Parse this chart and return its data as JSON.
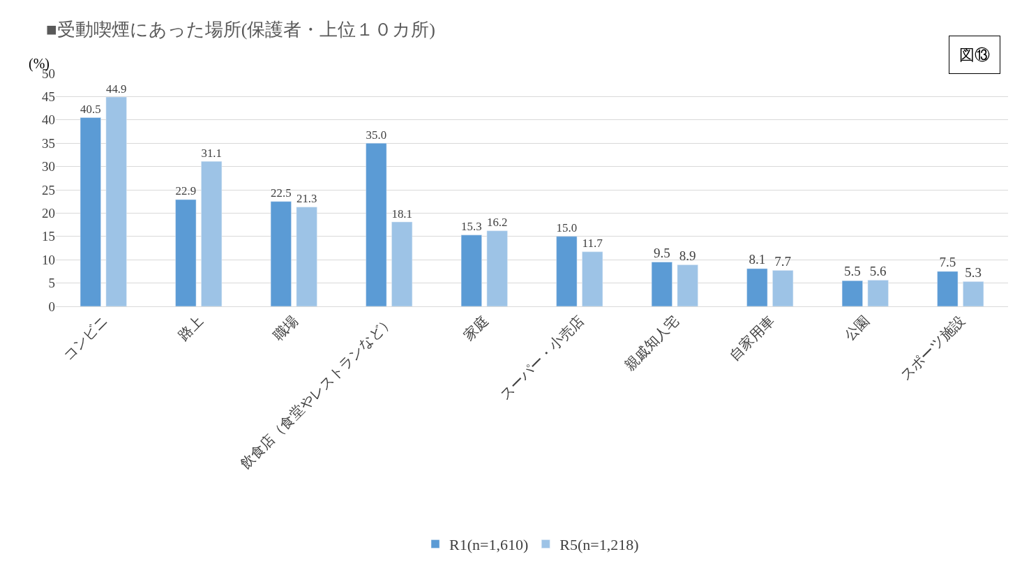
{
  "chart_data": {
    "type": "bar",
    "title": "■受動喫煙にあった場所(保護者・上位１０カ所)",
    "ylabel": "(%)",
    "annotations": [
      "図⑬"
    ],
    "categories": [
      "コンビニ",
      "路上",
      "職場",
      "飲食店（食堂やレストランなど）",
      "家庭",
      "スーパー・小売店",
      "親戚知人宅",
      "自家用車",
      "公園",
      "スポーツ施設"
    ],
    "series": [
      {
        "name": "R1(n=1,610)",
        "color": "#5b9bd5",
        "values": [
          40.5,
          22.9,
          22.5,
          35.0,
          15.3,
          15.0,
          9.5,
          8.1,
          5.5,
          7.5
        ],
        "value_labels": [
          "40.5",
          "22.9",
          "22.5",
          "35.0",
          "15.3",
          "15.0",
          "9.5",
          "8.1",
          "5.5",
          "7.5"
        ]
      },
      {
        "name": "R5(n=1,218)",
        "color": "#9dc3e6",
        "values": [
          44.9,
          31.1,
          21.3,
          18.1,
          16.2,
          11.7,
          8.9,
          7.7,
          5.6,
          5.3
        ],
        "value_labels": [
          "44.9",
          "31.1",
          "21.3",
          "18.1",
          "16.2",
          "11.7",
          "8.9",
          "7.7",
          "5.6",
          "5.3"
        ]
      }
    ],
    "ylim": [
      0,
      50
    ],
    "yticks": [
      0,
      5,
      10,
      15,
      20,
      25,
      30,
      35,
      40,
      45,
      50
    ],
    "grid": "y",
    "legend": "bottom"
  }
}
